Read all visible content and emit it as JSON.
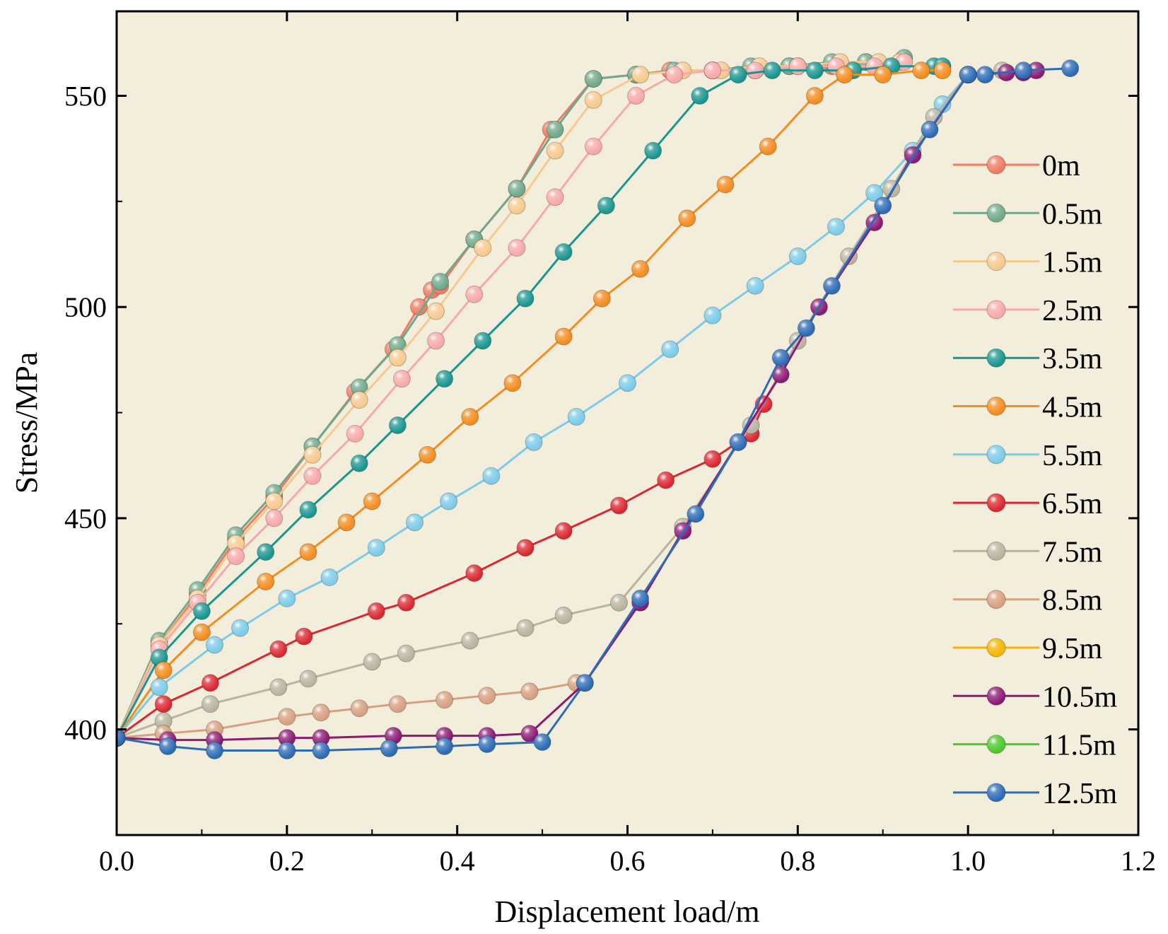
{
  "chart_data": {
    "type": "line",
    "title": "",
    "xlabel": "Displacement load/m",
    "ylabel": "Stress/MPa",
    "xlim": [
      0,
      1.2
    ],
    "ylim": [
      375,
      570
    ],
    "xticks": [
      0.0,
      0.2,
      0.4,
      0.6,
      0.8,
      1.0,
      1.2
    ],
    "xtick_labels": [
      "0.0",
      "0.2",
      "0.4",
      "0.6",
      "0.8",
      "1.0",
      "1.2"
    ],
    "yticks": [
      400,
      450,
      500,
      550
    ],
    "ytick_labels": [
      "400",
      "450",
      "500",
      "550"
    ],
    "plot_background": "#f3eedc",
    "grid": false,
    "legend_position": "right",
    "series": [
      {
        "name": "0m",
        "color": "#ee7b62",
        "x": [
          0,
          0.05,
          0.095,
          0.14,
          0.185,
          0.23,
          0.28,
          0.325,
          0.355,
          0.37,
          0.38,
          0.42,
          0.47,
          0.51,
          0.56,
          0.61,
          0.65,
          0.7,
          0.75,
          0.79,
          0.84,
          0.88,
          0.92
        ],
        "y": [
          398,
          420,
          432,
          445,
          455,
          467,
          480,
          490,
          500,
          504,
          505,
          516,
          528,
          542,
          554,
          555,
          556,
          556,
          556,
          557,
          557,
          558,
          558
        ]
      },
      {
        "name": "0.5m",
        "color": "#6fa88a",
        "x": [
          0,
          0.05,
          0.095,
          0.14,
          0.185,
          0.23,
          0.285,
          0.33,
          0.38,
          0.42,
          0.47,
          0.515,
          0.56,
          0.61,
          0.655,
          0.7,
          0.745,
          0.79,
          0.84,
          0.88,
          0.925
        ],
        "y": [
          398,
          421,
          433,
          446,
          456,
          467,
          481,
          491,
          506,
          516,
          528,
          542,
          554,
          555,
          556,
          556,
          557,
          557,
          558,
          558,
          559
        ]
      },
      {
        "name": "1.5m",
        "color": "#f7c98e",
        "x": [
          0,
          0.05,
          0.095,
          0.14,
          0.185,
          0.23,
          0.285,
          0.33,
          0.375,
          0.43,
          0.47,
          0.515,
          0.56,
          0.615,
          0.665,
          0.71,
          0.755,
          0.8,
          0.85,
          0.895,
          0.92
        ],
        "y": [
          398,
          420,
          431,
          444,
          454,
          465,
          478,
          488,
          499,
          514,
          524,
          537,
          549,
          555,
          556,
          556,
          557,
          557,
          558,
          558,
          558
        ]
      },
      {
        "name": "2.5m",
        "color": "#f8a8a8",
        "x": [
          0,
          0.05,
          0.095,
          0.14,
          0.185,
          0.23,
          0.28,
          0.335,
          0.375,
          0.42,
          0.47,
          0.515,
          0.56,
          0.61,
          0.655,
          0.7,
          0.75,
          0.8,
          0.845,
          0.89,
          0.925
        ],
        "y": [
          398,
          419,
          430,
          441,
          450,
          460,
          470,
          483,
          492,
          503,
          514,
          526,
          538,
          550,
          555,
          556,
          556,
          557,
          557,
          557,
          558
        ]
      },
      {
        "name": "3.5m",
        "color": "#1a9690",
        "x": [
          0,
          0.05,
          0.1,
          0.175,
          0.225,
          0.285,
          0.33,
          0.385,
          0.43,
          0.48,
          0.525,
          0.575,
          0.63,
          0.685,
          0.73,
          0.77,
          0.82,
          0.865,
          0.91,
          0.96,
          0.97
        ],
        "y": [
          398,
          417,
          428,
          442,
          452,
          463,
          472,
          483,
          492,
          502,
          513,
          524,
          537,
          550,
          555,
          556,
          556,
          556,
          557,
          557,
          557
        ]
      },
      {
        "name": "4.5m",
        "color": "#f48c1e",
        "x": [
          0,
          0.055,
          0.1,
          0.175,
          0.225,
          0.27,
          0.3,
          0.365,
          0.415,
          0.465,
          0.525,
          0.57,
          0.615,
          0.67,
          0.715,
          0.765,
          0.82,
          0.855,
          0.9,
          0.945,
          0.97
        ],
        "y": [
          398,
          414,
          423,
          435,
          442,
          449,
          454,
          465,
          474,
          482,
          493,
          502,
          509,
          521,
          529,
          538,
          550,
          555,
          555,
          556,
          556
        ]
      },
      {
        "name": "5.5m",
        "color": "#7ccbe8",
        "x": [
          0,
          0.05,
          0.115,
          0.145,
          0.2,
          0.25,
          0.305,
          0.35,
          0.39,
          0.44,
          0.49,
          0.54,
          0.6,
          0.65,
          0.7,
          0.75,
          0.8,
          0.845,
          0.89,
          0.935,
          0.97,
          1.0
        ],
        "y": [
          398,
          410,
          420,
          424,
          431,
          436,
          443,
          449,
          454,
          460,
          468,
          474,
          482,
          490,
          498,
          505,
          512,
          519,
          527,
          537,
          548,
          555
        ]
      },
      {
        "name": "6.5m",
        "color": "#dc2730",
        "x": [
          0,
          0.055,
          0.11,
          0.19,
          0.22,
          0.305,
          0.34,
          0.42,
          0.48,
          0.525,
          0.59,
          0.645,
          0.7,
          0.745,
          0.76
        ],
        "y": [
          398,
          406,
          411,
          419,
          422,
          428,
          430,
          437,
          443,
          447,
          453,
          459,
          464,
          470,
          477
        ]
      },
      {
        "name": "7.5m",
        "color": "#b9b49f",
        "x": [
          0,
          0.055,
          0.11,
          0.19,
          0.225,
          0.3,
          0.34,
          0.415,
          0.48,
          0.525,
          0.59,
          0.665,
          0.745,
          0.8,
          0.86,
          0.91,
          0.96,
          1.0,
          1.04
        ],
        "y": [
          398,
          402,
          406,
          410,
          412,
          416,
          418,
          421,
          424,
          427,
          430,
          448,
          472,
          492,
          512,
          528,
          545,
          555,
          556
        ]
      },
      {
        "name": "8.5m",
        "color": "#d8a080",
        "x": [
          0,
          0.055,
          0.115,
          0.2,
          0.24,
          0.285,
          0.33,
          0.385,
          0.435,
          0.485,
          0.54
        ],
        "y": [
          398,
          399,
          400,
          403,
          404,
          405,
          406,
          407,
          408,
          409,
          411
        ]
      },
      {
        "name": "9.5m",
        "color": "#f7b300",
        "x": [],
        "y": []
      },
      {
        "name": "10.5m",
        "color": "#8c1a75",
        "x": [
          0,
          0.06,
          0.115,
          0.2,
          0.24,
          0.325,
          0.385,
          0.435,
          0.485,
          0.55,
          0.615,
          0.665,
          0.73,
          0.78,
          0.825,
          0.89,
          0.935,
          1.0,
          1.045,
          1.065,
          1.08
        ],
        "y": [
          398,
          397.5,
          397.5,
          398,
          398,
          398.5,
          398.5,
          398.5,
          399,
          411,
          430,
          447,
          468,
          484,
          500,
          520,
          536,
          555,
          555.5,
          555.5,
          556
        ]
      },
      {
        "name": "11.5m",
        "color": "#4cc82c",
        "x": [],
        "y": []
      },
      {
        "name": "12.5m",
        "color": "#2c6bb6",
        "x": [
          0,
          0.06,
          0.115,
          0.2,
          0.24,
          0.32,
          0.385,
          0.435,
          0.5,
          0.55,
          0.615,
          0.68,
          0.73,
          0.78,
          0.81,
          0.84,
          0.9,
          0.955,
          1.0,
          1.02,
          1.065,
          1.12
        ],
        "y": [
          398,
          396,
          395,
          395,
          395,
          395.5,
          396,
          396.5,
          397,
          411,
          431,
          451,
          468,
          488,
          495,
          505,
          524,
          542,
          555,
          555,
          556,
          556.5
        ]
      }
    ]
  }
}
